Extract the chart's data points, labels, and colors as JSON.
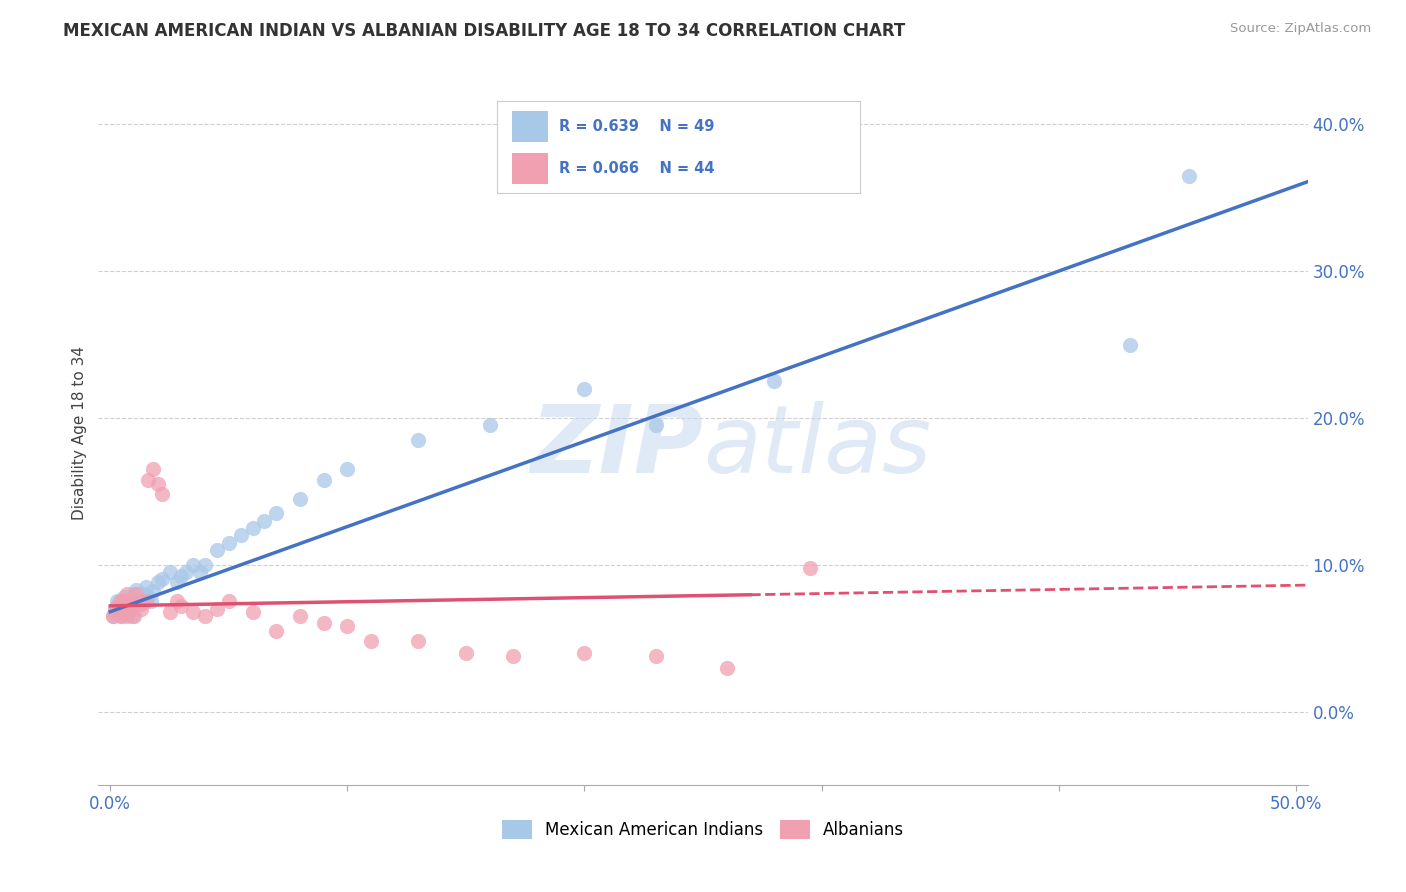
{
  "title": "MEXICAN AMERICAN INDIAN VS ALBANIAN DISABILITY AGE 18 TO 34 CORRELATION CHART",
  "source": "Source: ZipAtlas.com",
  "ylabel": "Disability Age 18 to 34",
  "xlabel": "",
  "xlim": [
    -0.005,
    0.505
  ],
  "ylim": [
    -0.05,
    0.43
  ],
  "xticks": [
    0.0,
    0.1,
    0.2,
    0.3,
    0.4,
    0.5
  ],
  "yticks": [
    0.0,
    0.1,
    0.2,
    0.3,
    0.4
  ],
  "ytick_labels": [
    "0.0%",
    "10.0%",
    "20.0%",
    "30.0%",
    "40.0%"
  ],
  "xtick_labels": [
    "0.0%",
    "",
    "",
    "",
    "",
    "50.0%"
  ],
  "legend_R_blue": "R = 0.639",
  "legend_N_blue": "N = 49",
  "legend_R_pink": "R = 0.066",
  "legend_N_pink": "N = 44",
  "blue_scatter_color": "#A8C8E8",
  "pink_scatter_color": "#F0A0B0",
  "blue_line_color": "#4472C4",
  "pink_line_color": "#E05070",
  "watermark_color": "#C8D8F0",
  "background_color": "#FFFFFF",
  "grid_color": "#D0D0D0",
  "blue_line_slope": 0.58,
  "blue_line_intercept": 0.068,
  "pink_line_slope": 0.028,
  "pink_line_intercept": 0.072,
  "blue_x": [
    0.001,
    0.002,
    0.003,
    0.003,
    0.004,
    0.004,
    0.005,
    0.005,
    0.006,
    0.006,
    0.007,
    0.007,
    0.008,
    0.009,
    0.01,
    0.01,
    0.011,
    0.012,
    0.013,
    0.014,
    0.015,
    0.016,
    0.017,
    0.018,
    0.02,
    0.022,
    0.025,
    0.028,
    0.03,
    0.032,
    0.035,
    0.038,
    0.04,
    0.045,
    0.05,
    0.055,
    0.06,
    0.065,
    0.07,
    0.08,
    0.09,
    0.1,
    0.13,
    0.16,
    0.2,
    0.23,
    0.28,
    0.43,
    0.455
  ],
  "blue_y": [
    0.065,
    0.07,
    0.068,
    0.075,
    0.072,
    0.068,
    0.065,
    0.075,
    0.07,
    0.078,
    0.073,
    0.068,
    0.072,
    0.065,
    0.08,
    0.075,
    0.083,
    0.078,
    0.073,
    0.08,
    0.085,
    0.078,
    0.075,
    0.082,
    0.088,
    0.09,
    0.095,
    0.088,
    0.092,
    0.095,
    0.1,
    0.095,
    0.1,
    0.11,
    0.115,
    0.12,
    0.125,
    0.13,
    0.135,
    0.145,
    0.158,
    0.165,
    0.185,
    0.195,
    0.22,
    0.195,
    0.225,
    0.25,
    0.365
  ],
  "pink_x": [
    0.001,
    0.002,
    0.003,
    0.003,
    0.004,
    0.004,
    0.005,
    0.005,
    0.006,
    0.006,
    0.007,
    0.007,
    0.008,
    0.009,
    0.01,
    0.01,
    0.011,
    0.012,
    0.013,
    0.015,
    0.016,
    0.018,
    0.02,
    0.022,
    0.025,
    0.028,
    0.03,
    0.035,
    0.04,
    0.045,
    0.05,
    0.06,
    0.07,
    0.08,
    0.09,
    0.1,
    0.11,
    0.13,
    0.15,
    0.17,
    0.2,
    0.23,
    0.26,
    0.295
  ],
  "pink_y": [
    0.065,
    0.068,
    0.07,
    0.072,
    0.065,
    0.075,
    0.068,
    0.072,
    0.075,
    0.07,
    0.065,
    0.08,
    0.068,
    0.072,
    0.065,
    0.075,
    0.08,
    0.075,
    0.07,
    0.075,
    0.158,
    0.165,
    0.155,
    0.148,
    0.068,
    0.075,
    0.072,
    0.068,
    0.065,
    0.07,
    0.075,
    0.068,
    0.055,
    0.065,
    0.06,
    0.058,
    0.048,
    0.048,
    0.04,
    0.038,
    0.04,
    0.038,
    0.03,
    0.098
  ]
}
